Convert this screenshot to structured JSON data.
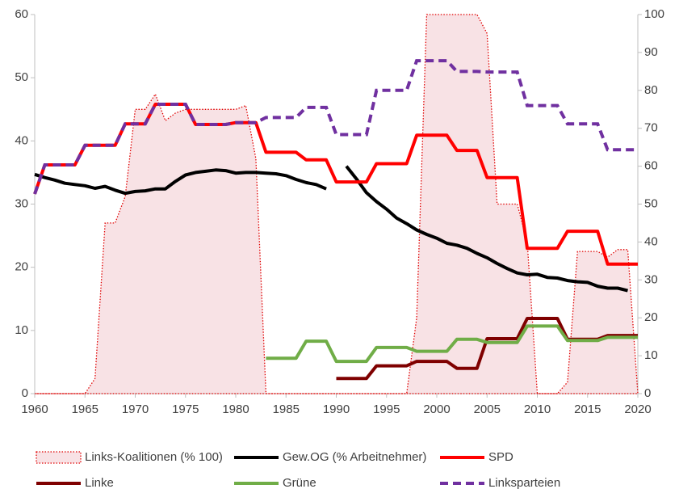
{
  "chart_data": {
    "type": "line",
    "x": [
      1960,
      1961,
      1962,
      1963,
      1964,
      1965,
      1966,
      1967,
      1968,
      1969,
      1970,
      1971,
      1972,
      1973,
      1974,
      1975,
      1976,
      1977,
      1978,
      1979,
      1980,
      1981,
      1982,
      1983,
      1984,
      1985,
      1986,
      1987,
      1988,
      1989,
      1990,
      1991,
      1992,
      1993,
      1994,
      1995,
      1996,
      1997,
      1998,
      1999,
      2000,
      2001,
      2002,
      2003,
      2004,
      2005,
      2006,
      2007,
      2008,
      2009,
      2010,
      2011,
      2012,
      2013,
      2014,
      2015,
      2016,
      2017,
      2018,
      2019,
      2020
    ],
    "xlim": [
      1960,
      2020
    ],
    "xticks": [
      1960,
      1965,
      1970,
      1975,
      1980,
      1985,
      1990,
      1995,
      2000,
      2005,
      2010,
      2015,
      2020
    ],
    "ylim": [
      0,
      60
    ],
    "yticks": [
      0,
      10,
      20,
      30,
      40,
      50,
      60
    ],
    "y2lim": [
      0,
      100
    ],
    "y2ticks": [
      0,
      10,
      20,
      30,
      40,
      50,
      60,
      70,
      80,
      90,
      100
    ],
    "series": [
      {
        "name": "Links-Koalitionen (% 100)",
        "color": "#e00000",
        "style": "area",
        "axis": "y2",
        "values": [
          0,
          0,
          0,
          0,
          0,
          0,
          4,
          45,
          45,
          52,
          75,
          75,
          79,
          72,
          74,
          75,
          75,
          75,
          75,
          75,
          75,
          76,
          62,
          0,
          0,
          0,
          0,
          0,
          0,
          0,
          0,
          0,
          0,
          0,
          0,
          0,
          0,
          0,
          20,
          100,
          100,
          100,
          100,
          100,
          100,
          95,
          50,
          50,
          50,
          40,
          0,
          0,
          0,
          3,
          37.5,
          37.5,
          37.5,
          36,
          38,
          38,
          0
        ]
      },
      {
        "name": "Gew.OG (% Arbeitnehmer)",
        "color": "#000000",
        "style": "solid",
        "values": [
          34.7,
          34.2,
          33.8,
          33.3,
          33.1,
          32.9,
          32.5,
          32.8,
          32.2,
          31.7,
          32.0,
          32.1,
          32.4,
          32.4,
          33.6,
          34.6,
          35.0,
          35.2,
          35.4,
          35.3,
          34.9,
          35.0,
          35.0,
          34.9,
          34.8,
          34.5,
          33.9,
          33.4,
          33.1,
          32.4,
          null,
          36.0,
          34.0,
          31.8,
          30.4,
          29.2,
          27.8,
          26.9,
          25.9,
          25.2,
          24.6,
          23.8,
          23.5,
          23.0,
          22.2,
          21.5,
          20.6,
          19.8,
          19.1,
          18.8,
          18.9,
          18.4,
          18.3,
          17.9,
          17.7,
          17.6,
          17.0,
          16.7,
          16.7,
          16.3,
          null
        ]
      },
      {
        "name": "SPD",
        "color": "#ff0000",
        "style": "solid",
        "values": [
          31.6,
          36.2,
          36.2,
          36.2,
          36.2,
          39.3,
          39.3,
          39.3,
          39.3,
          42.7,
          42.7,
          42.7,
          45.8,
          45.8,
          45.8,
          45.8,
          42.6,
          42.6,
          42.6,
          42.6,
          42.9,
          42.9,
          42.9,
          38.2,
          38.2,
          38.2,
          38.2,
          37.0,
          37.0,
          37.0,
          33.5,
          33.5,
          33.5,
          33.5,
          36.4,
          36.4,
          36.4,
          36.4,
          40.9,
          40.9,
          40.9,
          40.9,
          38.5,
          38.5,
          38.5,
          34.2,
          34.2,
          34.2,
          34.2,
          23.0,
          23.0,
          23.0,
          23.0,
          25.7,
          25.7,
          25.7,
          25.7,
          20.5,
          20.5,
          20.5,
          20.5
        ]
      },
      {
        "name": "Linke",
        "color": "#7f0000",
        "style": "solid",
        "values": [
          null,
          null,
          null,
          null,
          null,
          null,
          null,
          null,
          null,
          null,
          null,
          null,
          null,
          null,
          null,
          null,
          null,
          null,
          null,
          null,
          null,
          null,
          null,
          null,
          null,
          null,
          null,
          null,
          null,
          null,
          2.4,
          2.4,
          2.4,
          2.4,
          4.4,
          4.4,
          4.4,
          4.4,
          5.1,
          5.1,
          5.1,
          5.1,
          4.0,
          4.0,
          4.0,
          8.7,
          8.7,
          8.7,
          8.7,
          11.9,
          11.9,
          11.9,
          11.9,
          8.6,
          8.6,
          8.6,
          8.6,
          9.2,
          9.2,
          9.2,
          9.2
        ]
      },
      {
        "name": "Grüne",
        "color": "#70ad47",
        "style": "solid",
        "values": [
          null,
          null,
          null,
          null,
          null,
          null,
          null,
          null,
          null,
          null,
          null,
          null,
          null,
          null,
          null,
          null,
          null,
          null,
          null,
          null,
          null,
          null,
          null,
          5.6,
          5.6,
          5.6,
          5.6,
          8.3,
          8.3,
          8.3,
          5.1,
          5.1,
          5.1,
          5.1,
          7.3,
          7.3,
          7.3,
          7.3,
          6.7,
          6.7,
          6.7,
          6.7,
          8.6,
          8.6,
          8.6,
          8.1,
          8.1,
          8.1,
          8.1,
          10.7,
          10.7,
          10.7,
          10.7,
          8.4,
          8.4,
          8.4,
          8.4,
          8.9,
          8.9,
          8.9,
          8.9
        ]
      },
      {
        "name": "Linksparteien",
        "color": "#7030a0",
        "style": "dashed",
        "values": [
          31.6,
          36.2,
          36.2,
          36.2,
          36.2,
          39.3,
          39.3,
          39.3,
          39.3,
          42.7,
          42.7,
          42.7,
          45.8,
          45.8,
          45.8,
          45.8,
          42.6,
          42.6,
          42.6,
          42.6,
          42.9,
          42.9,
          42.9,
          43.7,
          43.7,
          43.7,
          43.7,
          45.3,
          45.3,
          45.3,
          41.0,
          41.0,
          41.0,
          41.0,
          48.0,
          48.0,
          48.0,
          48.0,
          52.7,
          52.7,
          52.7,
          52.7,
          51.0,
          51.0,
          51.0,
          50.9,
          50.9,
          50.9,
          50.9,
          45.6,
          45.6,
          45.6,
          45.6,
          42.7,
          42.7,
          42.7,
          42.7,
          38.6,
          38.6,
          38.6,
          38.6
        ]
      }
    ]
  }
}
